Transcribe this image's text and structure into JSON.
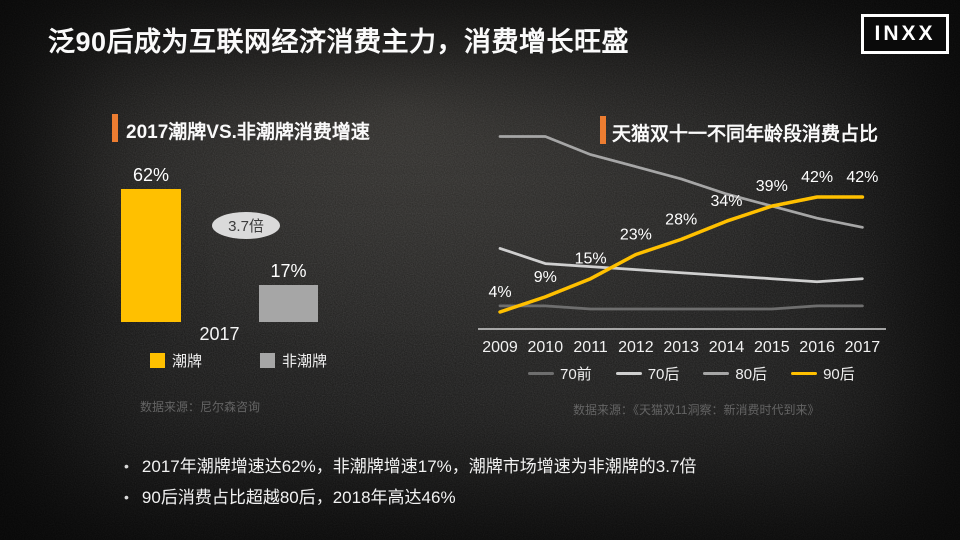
{
  "slide_title": "泛90后成为互联网经济消费主力，消费增长旺盛",
  "logo_text": "INXX",
  "left_chart": {
    "heading": "2017潮牌VS.非潮牌消费增速",
    "multiplier_badge": "3.7倍",
    "x_axis_label": "2017",
    "legend": [
      {
        "label": "潮牌",
        "color": "#FFC000"
      },
      {
        "label": "非潮牌",
        "color": "#A6A6A6"
      }
    ],
    "source": "数据来源：尼尔森咨询"
  },
  "right_chart": {
    "heading": "天猫双十一不同年龄段消费占比",
    "source": "数据来源：《天猫双11洞察：新消费时代到来》"
  },
  "bullets": [
    "2017年潮牌增速达62%，非潮牌增速17%，潮牌市场增速为非潮牌的3.7倍",
    "90后消费占比超越80后，2018年高达46%"
  ],
  "colors": {
    "accent_orange": "#ED7D31",
    "brand_yellow": "#FFC000",
    "bar_gray": "#A6A6A6",
    "badge_bg": "#DADADA",
    "axis_gray": "#CFCFCF",
    "footnote_gray": "#646464"
  },
  "chart_data": [
    {
      "type": "bar",
      "title": "2017潮牌VS.非潮牌消费增速",
      "categories": [
        "潮牌",
        "非潮牌"
      ],
      "values": [
        62,
        17
      ],
      "unit": "%",
      "xlabel": "2017",
      "annotation": "3.7倍",
      "colors": [
        "#FFC000",
        "#A6A6A6"
      ],
      "ylim": [
        0,
        70
      ],
      "grid": false,
      "source": "尼尔森咨询"
    },
    {
      "type": "line",
      "title": "天猫双十一不同年龄段消费占比",
      "x": [
        "2009",
        "2010",
        "2011",
        "2012",
        "2013",
        "2014",
        "2015",
        "2016",
        "2017"
      ],
      "series": [
        {
          "name": "70前",
          "color": "#6E6E6E",
          "values": [
            6,
            6,
            5,
            5,
            5,
            5,
            5,
            6,
            6
          ]
        },
        {
          "name": "70后",
          "color": "#CFCFCF",
          "values": [
            25,
            20,
            19,
            18,
            17,
            16,
            15,
            14,
            15
          ]
        },
        {
          "name": "80后",
          "color": "#A6A6A6",
          "values": [
            62,
            62,
            56,
            52,
            48,
            43,
            39,
            35,
            32
          ]
        },
        {
          "name": "90后",
          "color": "#FFC000",
          "values": [
            4,
            9,
            15,
            23,
            28,
            34,
            39,
            42,
            42
          ],
          "labeled": true
        }
      ],
      "unit": "%",
      "ylim": [
        0,
        70
      ],
      "grid": false,
      "legend_position": "bottom",
      "source": "《天猫双11洞察：新消费时代到来》"
    }
  ]
}
